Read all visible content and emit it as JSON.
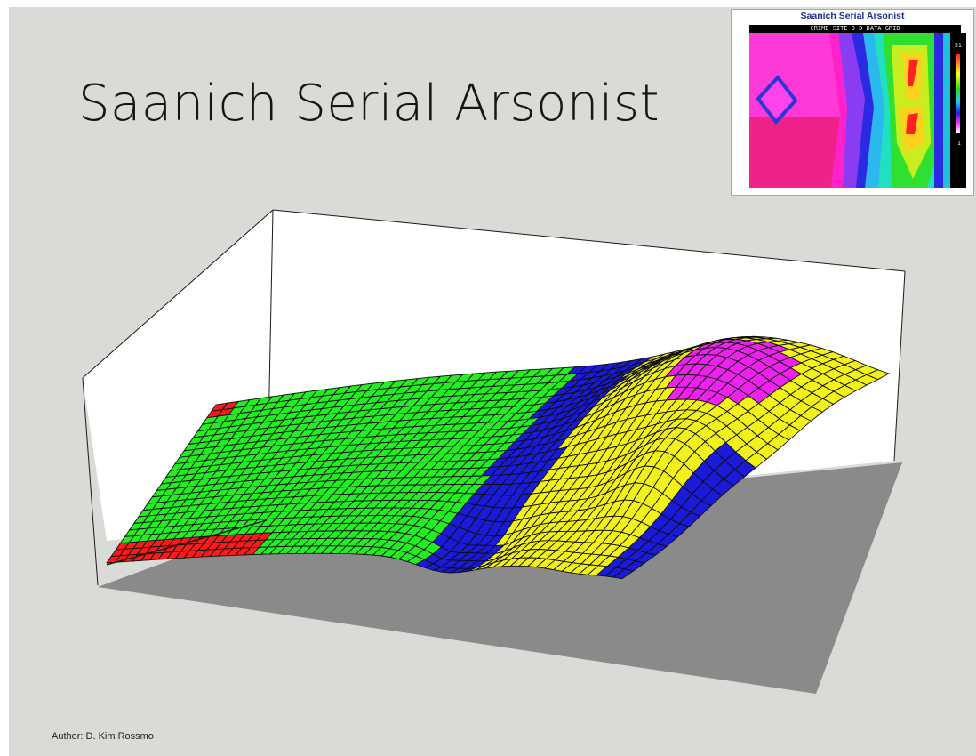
{
  "title": "Saanich Serial Arsonist",
  "author": "Author: D. Kim Rossmo",
  "inset": {
    "title": "Saanich Serial Arsonist",
    "subtitle": "CRIME SITE 3-D DATA GRID",
    "scale_max": "51",
    "scale_min": "1"
  },
  "colors": {
    "background": "#d9dbd6",
    "floor": "#8a8a8a",
    "low": "#ff1a1a",
    "low_mid": "#22ee22",
    "mid": "#1a1ad8",
    "high": "#f2f21a",
    "peak": "#ee22ee"
  }
}
